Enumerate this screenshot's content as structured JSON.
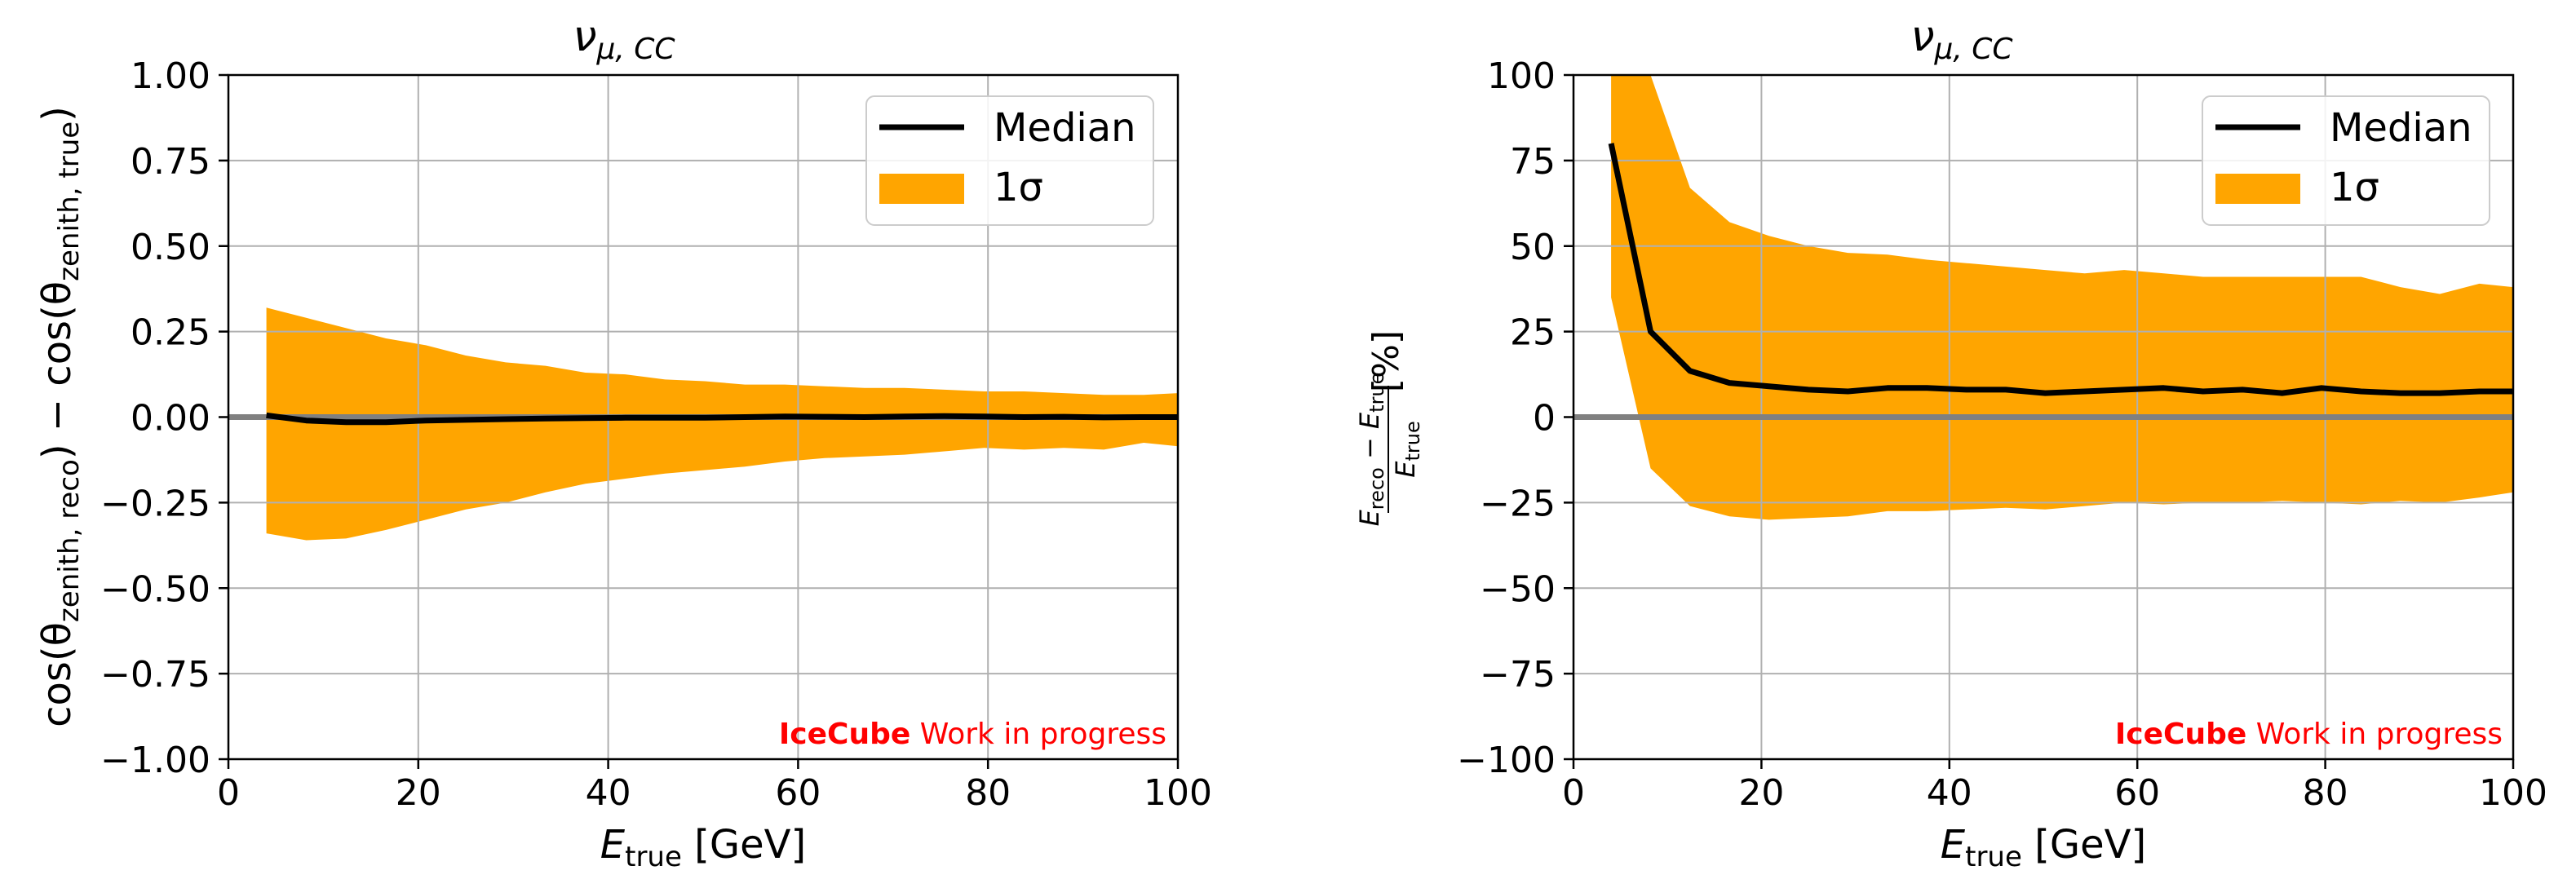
{
  "chart_data": [
    {
      "type": "area",
      "title_main": "ν",
      "title_sub": "μ, CC",
      "xlabel_main": "E",
      "xlabel_sub": "true",
      "xlabel_unit": " [GeV]",
      "ylabel_parts": [
        "cos(θ",
        "zenith, reco",
        ") − cos(θ",
        "zenith, true",
        ")"
      ],
      "xlim": [
        0,
        100
      ],
      "ylim": [
        -1.0,
        1.0
      ],
      "xticks": [
        0,
        20,
        40,
        60,
        80,
        100
      ],
      "xtick_labels": [
        "0",
        "20",
        "40",
        "60",
        "80",
        "100"
      ],
      "yticks": [
        -1.0,
        -0.75,
        -0.5,
        -0.25,
        0.0,
        0.25,
        0.5,
        0.75,
        1.0
      ],
      "ytick_labels": [
        "−1.00",
        "−0.75",
        "−0.50",
        "−0.25",
        "0.00",
        "0.25",
        "0.50",
        "0.75",
        "1.00"
      ],
      "grid": true,
      "reference_line": 0,
      "legend": {
        "placement": "top-right",
        "entries": [
          "Median",
          "1σ"
        ]
      },
      "annotation": {
        "bold": "IceCube",
        "rest": " Work in progress"
      },
      "x": [
        4,
        8.2,
        12.4,
        16.6,
        20.8,
        25,
        29.2,
        33.4,
        37.6,
        41.8,
        46,
        50.2,
        54.4,
        58.6,
        62.8,
        67,
        71.2,
        75.4,
        79.6,
        83.8,
        88,
        92.2,
        96.4,
        100
      ],
      "median": [
        0.005,
        -0.01,
        -0.015,
        -0.015,
        -0.01,
        -0.008,
        -0.006,
        -0.004,
        -0.003,
        -0.002,
        -0.002,
        -0.002,
        0.0,
        0.002,
        0.001,
        0.0,
        0.002,
        0.003,
        0.002,
        0.0,
        0.001,
        -0.001,
        0.0,
        0.0
      ],
      "upper": [
        0.32,
        0.29,
        0.26,
        0.23,
        0.21,
        0.18,
        0.16,
        0.15,
        0.13,
        0.125,
        0.11,
        0.105,
        0.095,
        0.095,
        0.09,
        0.085,
        0.085,
        0.08,
        0.075,
        0.075,
        0.07,
        0.065,
        0.065,
        0.07
      ],
      "lower": [
        -0.34,
        -0.36,
        -0.355,
        -0.33,
        -0.3,
        -0.27,
        -0.25,
        -0.22,
        -0.195,
        -0.18,
        -0.165,
        -0.155,
        -0.145,
        -0.13,
        -0.12,
        -0.115,
        -0.11,
        -0.1,
        -0.09,
        -0.095,
        -0.09,
        -0.095,
        -0.075,
        -0.085
      ],
      "colors": {
        "band": "#ffa500",
        "median": "#000000",
        "reference": "#808080",
        "grid": "#b0b0b0",
        "annotation": "#ff0000"
      }
    },
    {
      "type": "area",
      "title_main": "ν",
      "title_sub": "μ, CC",
      "xlabel_main": "E",
      "xlabel_sub": "true",
      "xlabel_unit": " [GeV]",
      "ylabel_num": [
        "E",
        "reco",
        " − E",
        "true"
      ],
      "ylabel_den": [
        "E",
        "true"
      ],
      "ylabel_unit": "[%]",
      "xlim": [
        0,
        100
      ],
      "ylim": [
        -100,
        100
      ],
      "xticks": [
        0,
        20,
        40,
        60,
        80,
        100
      ],
      "xtick_labels": [
        "0",
        "20",
        "40",
        "60",
        "80",
        "100"
      ],
      "yticks": [
        -100,
        -75,
        -50,
        -25,
        0,
        25,
        50,
        75,
        100
      ],
      "ytick_labels": [
        "−100",
        "−75",
        "−50",
        "−25",
        "0",
        "25",
        "50",
        "75",
        "100"
      ],
      "grid": true,
      "reference_line": 0,
      "legend": {
        "placement": "top-right",
        "entries": [
          "Median",
          "1σ"
        ]
      },
      "annotation": {
        "bold": "IceCube",
        "rest": " Work in progress"
      },
      "x": [
        4,
        8.2,
        12.4,
        16.6,
        20.8,
        25,
        29.2,
        33.4,
        37.6,
        41.8,
        46,
        50.2,
        54.4,
        58.6,
        62.8,
        67,
        71.2,
        75.4,
        79.6,
        83.8,
        88,
        92.2,
        96.4,
        100
      ],
      "median": [
        80,
        25,
        13.5,
        10,
        9,
        8,
        7.5,
        8.5,
        8.5,
        8,
        8,
        7,
        7.5,
        8,
        8.5,
        7.5,
        8,
        7,
        8.5,
        7.5,
        7,
        7,
        7.5,
        7.5
      ],
      "upper": [
        100,
        100,
        67,
        57,
        53,
        50,
        48,
        47.5,
        46,
        45,
        44,
        43,
        42,
        43,
        42,
        41,
        41,
        41,
        41,
        41,
        38,
        36,
        39,
        38
      ],
      "lower": [
        35,
        -15,
        -26,
        -29,
        -30,
        -29.5,
        -29,
        -27.5,
        -27.5,
        -27,
        -26.5,
        -27,
        -26,
        -25,
        -25.5,
        -25,
        -25,
        -24.5,
        -25,
        -25.5,
        -24.5,
        -25,
        -23.5,
        -22
      ]
    }
  ]
}
